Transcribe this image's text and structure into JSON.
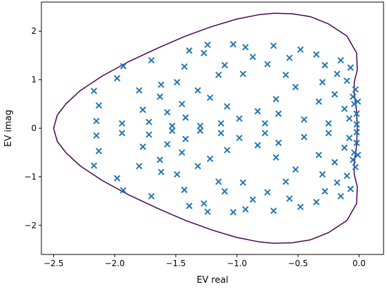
{
  "chart_data": {
    "type": "scatter",
    "title": "",
    "xlabel": "EV real",
    "ylabel": "EV imag",
    "xlim": [
      -2.6,
      0.2
    ],
    "ylim": [
      -2.6,
      2.6
    ],
    "xticks": [
      -2.5,
      -2.0,
      -1.5,
      -1.0,
      -0.5,
      0.0
    ],
    "xtick_labels": [
      "−2.5",
      "−2.0",
      "−1.5",
      "−1.0",
      "−0.5",
      "0.0"
    ],
    "yticks": [
      -2,
      -1,
      0,
      1,
      2
    ],
    "ytick_labels": [
      "−2",
      "−1",
      "0",
      "1",
      "2"
    ],
    "grid": false,
    "marker": "x",
    "colors": {
      "marker": "#1f77b4",
      "contour": "#440154",
      "axes": "#000000"
    },
    "contour": {
      "upper_outline": [
        [
          -2.5,
          0.0
        ],
        [
          -2.47,
          0.27
        ],
        [
          -2.4,
          0.5
        ],
        [
          -2.28,
          0.78
        ],
        [
          -2.1,
          1.08
        ],
        [
          -1.88,
          1.38
        ],
        [
          -1.65,
          1.65
        ],
        [
          -1.42,
          1.9
        ],
        [
          -1.2,
          2.1
        ],
        [
          -1.0,
          2.25
        ],
        [
          -0.82,
          2.34
        ],
        [
          -0.7,
          2.37
        ],
        [
          -0.55,
          2.36
        ],
        [
          -0.4,
          2.3
        ],
        [
          -0.25,
          2.15
        ],
        [
          -0.1,
          1.9
        ],
        [
          -0.02,
          1.55
        ],
        [
          -0.015,
          1.2
        ],
        [
          -0.04,
          0.95
        ],
        [
          -0.04,
          0.7
        ],
        [
          -0.02,
          0.35
        ],
        [
          -0.015,
          0.0
        ]
      ]
    },
    "eigenvalues": [
      [
        -2.17,
        0.77
      ],
      [
        -2.17,
        -0.77
      ],
      [
        -2.13,
        0.47
      ],
      [
        -2.13,
        -0.47
      ],
      [
        -2.15,
        0.15
      ],
      [
        -2.15,
        -0.15
      ],
      [
        -1.98,
        1.03
      ],
      [
        -1.98,
        -1.03
      ],
      [
        -1.93,
        1.28
      ],
      [
        -1.93,
        -1.28
      ],
      [
        -1.94,
        0.1
      ],
      [
        -1.94,
        -0.1
      ],
      [
        -1.8,
        0.78
      ],
      [
        -1.8,
        -0.78
      ],
      [
        -1.77,
        0.38
      ],
      [
        -1.77,
        -0.38
      ],
      [
        -1.72,
        0.13
      ],
      [
        -1.72,
        -0.13
      ],
      [
        -1.7,
        1.4
      ],
      [
        -1.7,
        -1.4
      ],
      [
        -1.63,
        0.65
      ],
      [
        -1.63,
        -0.65
      ],
      [
        -1.62,
        0.9
      ],
      [
        -1.62,
        -0.9
      ],
      [
        -1.57,
        0.33
      ],
      [
        -1.57,
        -0.33
      ],
      [
        -1.53,
        0.05
      ],
      [
        -1.53,
        -0.05
      ],
      [
        -1.49,
        0.95
      ],
      [
        -1.49,
        -0.95
      ],
      [
        -1.45,
        0.5
      ],
      [
        -1.45,
        -0.5
      ],
      [
        -1.43,
        1.27
      ],
      [
        -1.43,
        -1.27
      ],
      [
        -1.42,
        0.22
      ],
      [
        -1.42,
        -0.22
      ],
      [
        -1.39,
        1.6
      ],
      [
        -1.39,
        -1.6
      ],
      [
        -1.32,
        0.78
      ],
      [
        -1.32,
        -0.78
      ],
      [
        -1.3,
        0.05
      ],
      [
        -1.3,
        -0.05
      ],
      [
        -1.27,
        1.55
      ],
      [
        -1.27,
        -1.55
      ],
      [
        -1.24,
        1.72
      ],
      [
        -1.24,
        -1.72
      ],
      [
        -1.22,
        0.63
      ],
      [
        -1.22,
        -0.63
      ],
      [
        -1.15,
        1.1
      ],
      [
        -1.15,
        -1.1
      ],
      [
        -1.13,
        0.1
      ],
      [
        -1.13,
        -0.1
      ],
      [
        -1.1,
        1.3
      ],
      [
        -1.1,
        -1.3
      ],
      [
        -1.08,
        0.45
      ],
      [
        -1.08,
        -0.45
      ],
      [
        -1.03,
        1.73
      ],
      [
        -1.03,
        -1.73
      ],
      [
        -0.98,
        0.2
      ],
      [
        -0.98,
        -0.2
      ],
      [
        -0.95,
        1.12
      ],
      [
        -0.95,
        -1.12
      ],
      [
        -0.93,
        1.67
      ],
      [
        -0.93,
        -1.67
      ],
      [
        -0.87,
        1.47
      ],
      [
        -0.87,
        -1.47
      ],
      [
        -0.83,
        0.35
      ],
      [
        -0.83,
        -0.35
      ],
      [
        -0.77,
        0.1
      ],
      [
        -0.77,
        -0.1
      ],
      [
        -0.75,
        1.32
      ],
      [
        -0.75,
        -1.32
      ],
      [
        -0.7,
        1.7
      ],
      [
        -0.7,
        -1.7
      ],
      [
        -0.68,
        0.6
      ],
      [
        -0.68,
        -0.6
      ],
      [
        -0.66,
        0.3
      ],
      [
        -0.66,
        -0.3
      ],
      [
        -0.6,
        1.1
      ],
      [
        -0.6,
        -1.1
      ],
      [
        -0.57,
        1.45
      ],
      [
        -0.57,
        -1.45
      ],
      [
        -0.52,
        0.85
      ],
      [
        -0.52,
        -0.85
      ],
      [
        -0.48,
        1.62
      ],
      [
        -0.48,
        -1.62
      ],
      [
        -0.45,
        0.18
      ],
      [
        -0.45,
        -0.18
      ],
      [
        -0.35,
        1.52
      ],
      [
        -0.35,
        -1.52
      ],
      [
        -0.33,
        0.55
      ],
      [
        -0.33,
        -0.55
      ],
      [
        -0.3,
        0.95
      ],
      [
        -0.3,
        -0.95
      ],
      [
        -0.28,
        1.3
      ],
      [
        -0.28,
        -1.3
      ],
      [
        -0.25,
        0.1
      ],
      [
        -0.25,
        -0.1
      ],
      [
        -0.2,
        0.7
      ],
      [
        -0.2,
        -0.7
      ],
      [
        -0.18,
        1.12
      ],
      [
        -0.18,
        -1.12
      ],
      [
        -0.15,
        1.4
      ],
      [
        -0.15,
        -1.4
      ],
      [
        -0.12,
        0.4
      ],
      [
        -0.12,
        -0.4
      ],
      [
        -0.1,
        0.98
      ],
      [
        -0.1,
        -0.98
      ],
      [
        -0.08,
        0.2
      ],
      [
        -0.08,
        -0.2
      ],
      [
        -0.07,
        1.25
      ],
      [
        -0.07,
        -1.25
      ],
      [
        -0.05,
        0.65
      ],
      [
        -0.05,
        -0.65
      ],
      [
        -0.04,
        0.5
      ],
      [
        -0.04,
        -0.5
      ],
      [
        -0.03,
        0.8
      ],
      [
        -0.03,
        -0.8
      ],
      [
        -0.02,
        0.08
      ],
      [
        -0.02,
        -0.08
      ],
      [
        -0.02,
        0.3
      ],
      [
        -0.02,
        -0.3
      ],
      [
        -0.01,
        0.55
      ],
      [
        -0.01,
        -0.55
      ]
    ]
  }
}
